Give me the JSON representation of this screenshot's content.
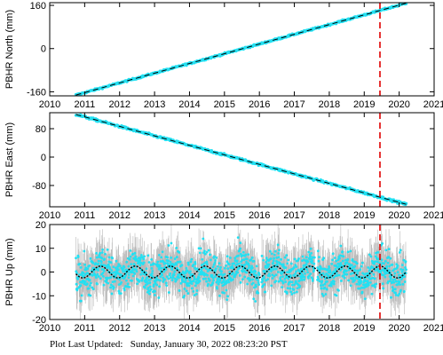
{
  "footer": {
    "label": "Plot Last Updated:",
    "timestamp": "Sunday, January 30, 2022 08:23:20 PST"
  },
  "colors": {
    "points": "#22e0f2",
    "errorbars": "#b8b8b8",
    "trend": "#000000",
    "marker": "#e00000",
    "frame": "#000000"
  },
  "chart_data": [
    {
      "type": "scatter",
      "ylabel": "PBHR North (mm)",
      "xlim": [
        2010,
        2021
      ],
      "ylim": [
        -175,
        170
      ],
      "x_ticks": [
        2010,
        2011,
        2012,
        2013,
        2014,
        2015,
        2016,
        2017,
        2018,
        2019,
        2020,
        2021
      ],
      "y_ticks": [
        -160,
        0,
        160
      ],
      "series": [
        {
          "x_start": 2010.75,
          "x_end": 2020.2,
          "y_start": -172,
          "y_end": 168
        }
      ],
      "vline": 2019.45
    },
    {
      "type": "scatter",
      "ylabel": "PBHR East (mm)",
      "xlim": [
        2010,
        2021
      ],
      "ylim": [
        -140,
        125
      ],
      "x_ticks": [
        2010,
        2011,
        2012,
        2013,
        2014,
        2015,
        2016,
        2017,
        2018,
        2019,
        2020,
        2021
      ],
      "y_ticks": [
        -80,
        0,
        80
      ],
      "series": [
        {
          "x_start": 2010.75,
          "x_end": 2020.2,
          "y_start": 120,
          "y_end": -133
        }
      ],
      "vline": 2019.45
    },
    {
      "type": "scatter",
      "ylabel": "PBHR Up (mm)",
      "xlim": [
        2010,
        2021
      ],
      "ylim": [
        -20,
        20
      ],
      "x_ticks": [
        2010,
        2011,
        2012,
        2013,
        2014,
        2015,
        2016,
        2017,
        2018,
        2019,
        2020,
        2021
      ],
      "y_ticks": [
        -20,
        -10,
        0,
        10,
        20
      ],
      "series": [
        {
          "x_start": 2010.75,
          "x_end": 2020.2,
          "mean": 0,
          "seasonal_amplitude": 2.5,
          "scatter": 4
        }
      ],
      "vline": 2019.45
    }
  ]
}
